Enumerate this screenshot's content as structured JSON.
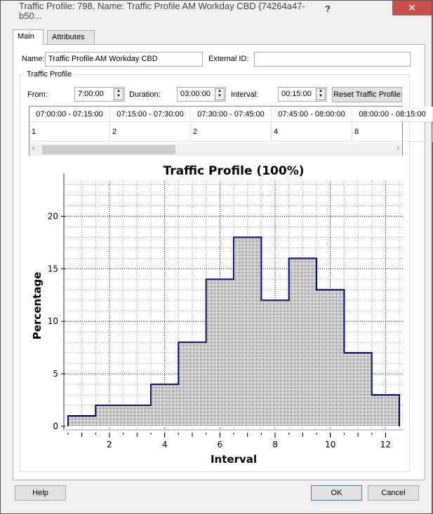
{
  "window": {
    "title": "Traffic Profile: 798, Name: Traffic Profile AM Workday CBD  {74264a47-b50...",
    "help_label": "?",
    "close_label": "✕"
  },
  "tabs": [
    {
      "label": "Main",
      "active": true
    },
    {
      "label": "Attributes",
      "active": false
    }
  ],
  "form": {
    "name_label": "Name:",
    "name_value": "Traffic Profile AM Workday CBD",
    "external_id_label": "External ID:",
    "external_id_value": ""
  },
  "traffic_profile": {
    "group_label": "Traffic Profile",
    "from_label": "From:",
    "from_value": "7:00:00",
    "duration_label": "Duration:",
    "duration_value": "03:00:00",
    "interval_label": "Interval:",
    "interval_value": "00:15:00",
    "reset_label": "Reset Traffic Profile"
  },
  "grid": {
    "columns": [
      "07:00:00 - 07:15:00",
      "07:15:00 - 07:30:00",
      "07:30:00 - 07:45:00",
      "07:45:00 - 08:00:00",
      "08:00:00 - 08:15:00"
    ],
    "values": [
      "1",
      "2",
      "2",
      "4",
      "8"
    ]
  },
  "chart_data": {
    "type": "step-area",
    "title": "Traffic Profile (100%)",
    "xlabel": "Interval",
    "ylabel": "Percentage",
    "x": [
      1,
      2,
      3,
      4,
      5,
      6,
      7,
      8,
      9,
      10,
      11,
      12
    ],
    "values": [
      1,
      2,
      2,
      4,
      8,
      14,
      18,
      12,
      16,
      13,
      7,
      3
    ],
    "xlim": [
      0.4,
      12.65
    ],
    "ylim": [
      0,
      23.3
    ],
    "xticks": [
      2,
      4,
      6,
      8,
      10,
      12
    ],
    "yticks": [
      0,
      5,
      10,
      15,
      20
    ],
    "grid": true,
    "line_color": "#000080",
    "fill_color": "#cc0000"
  },
  "footer": {
    "help_label": "Help",
    "ok_label": "OK",
    "cancel_label": "Cancel"
  }
}
